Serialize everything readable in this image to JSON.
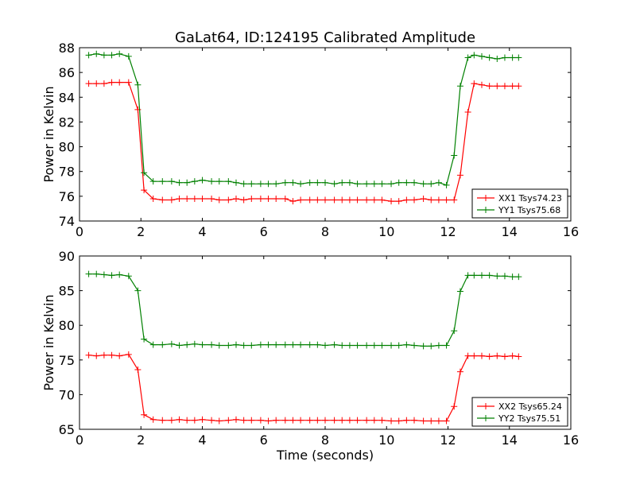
{
  "title": "GaLat64, ID:124195 Calibrated Amplitude",
  "chart_data": [
    {
      "type": "line",
      "title": "GaLat64, ID:124195 Calibrated Amplitude",
      "xlabel": "",
      "ylabel": "Power in Kelvin",
      "xlim": [
        0,
        16
      ],
      "ylim": [
        74,
        88
      ],
      "xticks": [
        0,
        2,
        4,
        6,
        8,
        10,
        12,
        14,
        16
      ],
      "yticks": [
        74,
        76,
        78,
        80,
        82,
        84,
        86,
        88
      ],
      "grid": false,
      "legend": "lower-right",
      "x": [
        0.3,
        0.55,
        0.8,
        1.05,
        1.3,
        1.6,
        1.9,
        2.1,
        2.4,
        2.7,
        3.0,
        3.25,
        3.5,
        3.75,
        4.0,
        4.3,
        4.55,
        4.85,
        5.1,
        5.35,
        5.6,
        5.9,
        6.15,
        6.4,
        6.7,
        6.95,
        7.2,
        7.5,
        7.75,
        8.0,
        8.3,
        8.55,
        8.8,
        9.05,
        9.35,
        9.6,
        9.85,
        10.15,
        10.4,
        10.65,
        10.9,
        11.2,
        11.45,
        11.7,
        11.95,
        12.2,
        12.4,
        12.65,
        12.85,
        13.1,
        13.35,
        13.6,
        13.85,
        14.1,
        14.3
      ],
      "series": [
        {
          "name": "XX1 Tsys74.23",
          "color": "#ff0000",
          "values": [
            85.1,
            85.1,
            85.1,
            85.2,
            85.2,
            85.2,
            83.0,
            76.5,
            75.8,
            75.7,
            75.7,
            75.8,
            75.8,
            75.8,
            75.8,
            75.8,
            75.7,
            75.7,
            75.8,
            75.7,
            75.8,
            75.8,
            75.8,
            75.8,
            75.8,
            75.6,
            75.7,
            75.7,
            75.7,
            75.7,
            75.7,
            75.7,
            75.7,
            75.7,
            75.7,
            75.7,
            75.7,
            75.6,
            75.6,
            75.7,
            75.7,
            75.8,
            75.7,
            75.7,
            75.7,
            75.7,
            77.7,
            82.8,
            85.1,
            85.0,
            84.9,
            84.9,
            84.9,
            84.9,
            84.9
          ]
        },
        {
          "name": "YY1 Tsys75.68",
          "color": "#008000",
          "values": [
            87.4,
            87.5,
            87.4,
            87.4,
            87.5,
            87.3,
            85.0,
            77.9,
            77.2,
            77.2,
            77.2,
            77.1,
            77.1,
            77.2,
            77.3,
            77.2,
            77.2,
            77.2,
            77.1,
            77.0,
            77.0,
            77.0,
            77.0,
            77.0,
            77.1,
            77.1,
            77.0,
            77.1,
            77.1,
            77.1,
            77.0,
            77.1,
            77.1,
            77.0,
            77.0,
            77.0,
            77.0,
            77.0,
            77.1,
            77.1,
            77.1,
            77.0,
            77.0,
            77.1,
            76.9,
            79.3,
            84.9,
            87.2,
            87.4,
            87.3,
            87.2,
            87.1,
            87.2,
            87.2,
            87.2
          ]
        }
      ]
    },
    {
      "type": "line",
      "title": "",
      "xlabel": "Time (seconds)",
      "ylabel": "Power in Kelvin",
      "xlim": [
        0,
        16
      ],
      "ylim": [
        65,
        90
      ],
      "xticks": [
        0,
        2,
        4,
        6,
        8,
        10,
        12,
        14,
        16
      ],
      "yticks": [
        65,
        70,
        75,
        80,
        85,
        90
      ],
      "grid": false,
      "legend": "lower-right",
      "x": [
        0.3,
        0.55,
        0.8,
        1.05,
        1.3,
        1.6,
        1.9,
        2.1,
        2.4,
        2.7,
        3.0,
        3.25,
        3.5,
        3.75,
        4.0,
        4.3,
        4.55,
        4.85,
        5.1,
        5.35,
        5.6,
        5.9,
        6.15,
        6.4,
        6.7,
        6.95,
        7.2,
        7.5,
        7.75,
        8.0,
        8.3,
        8.55,
        8.8,
        9.05,
        9.35,
        9.6,
        9.85,
        10.15,
        10.4,
        10.65,
        10.9,
        11.2,
        11.45,
        11.7,
        11.95,
        12.2,
        12.4,
        12.65,
        12.85,
        13.1,
        13.35,
        13.6,
        13.85,
        14.1,
        14.3
      ],
      "series": [
        {
          "name": "XX2 Tsys65.24",
          "color": "#ff0000",
          "values": [
            75.7,
            75.6,
            75.7,
            75.7,
            75.6,
            75.8,
            73.6,
            67.1,
            66.4,
            66.3,
            66.3,
            66.4,
            66.3,
            66.3,
            66.4,
            66.3,
            66.2,
            66.3,
            66.4,
            66.3,
            66.3,
            66.3,
            66.2,
            66.3,
            66.3,
            66.3,
            66.3,
            66.3,
            66.3,
            66.3,
            66.3,
            66.3,
            66.3,
            66.3,
            66.3,
            66.3,
            66.3,
            66.2,
            66.2,
            66.3,
            66.3,
            66.2,
            66.2,
            66.2,
            66.2,
            68.3,
            73.3,
            75.6,
            75.6,
            75.6,
            75.5,
            75.6,
            75.5,
            75.6,
            75.5
          ]
        },
        {
          "name": "YY2 Tsys75.51",
          "color": "#008000",
          "values": [
            87.4,
            87.4,
            87.3,
            87.2,
            87.3,
            87.1,
            85.0,
            78.0,
            77.2,
            77.2,
            77.3,
            77.1,
            77.2,
            77.3,
            77.2,
            77.2,
            77.1,
            77.1,
            77.2,
            77.1,
            77.1,
            77.2,
            77.2,
            77.2,
            77.2,
            77.2,
            77.2,
            77.2,
            77.2,
            77.1,
            77.2,
            77.1,
            77.1,
            77.1,
            77.1,
            77.1,
            77.1,
            77.1,
            77.1,
            77.2,
            77.1,
            77.0,
            77.0,
            77.1,
            77.1,
            79.2,
            84.9,
            87.2,
            87.2,
            87.2,
            87.2,
            87.1,
            87.1,
            87.0,
            87.0
          ]
        }
      ]
    }
  ]
}
